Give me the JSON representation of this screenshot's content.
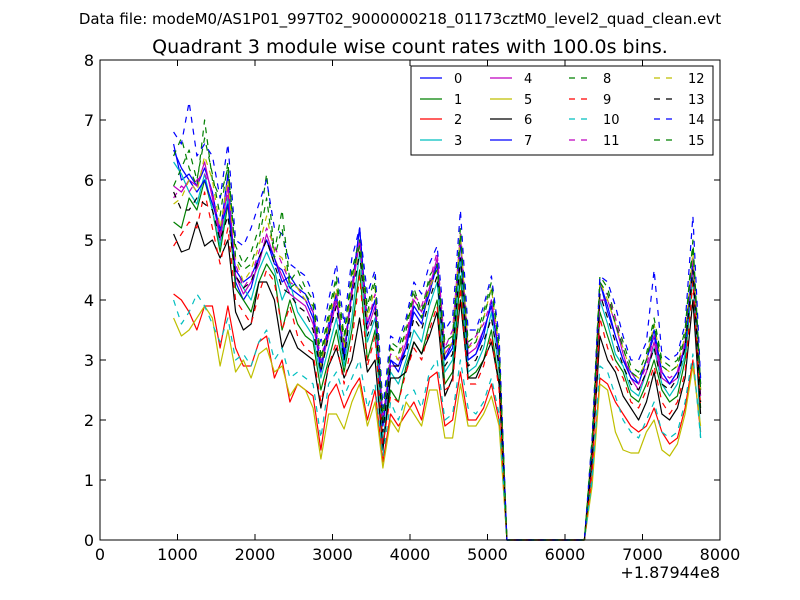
{
  "suptitle": "Data file: modeM0/AS1P01_997T02_9000000218_01173cztM0_level2_quad_clean.evt",
  "chart_data": {
    "type": "line",
    "title": "Quadrant 3 module wise count rates with 100.0s bins.",
    "xlabel": "",
    "ylabel": "",
    "xlim": [
      0,
      8000
    ],
    "ylim": [
      0,
      8
    ],
    "x_offset_label": "+1.87944e8",
    "x_ticks": [
      0,
      1000,
      2000,
      3000,
      4000,
      5000,
      6000,
      7000,
      8000
    ],
    "y_ticks": [
      0,
      1,
      2,
      3,
      4,
      5,
      6,
      7,
      8
    ],
    "grid": false,
    "legend_position": "top-right",
    "x": [
      950,
      1050,
      1150,
      1250,
      1350,
      1450,
      1550,
      1650,
      1750,
      1850,
      1950,
      2050,
      2150,
      2250,
      2350,
      2450,
      2550,
      2650,
      2750,
      2850,
      2950,
      3050,
      3150,
      3250,
      3350,
      3450,
      3550,
      3650,
      3750,
      3850,
      3950,
      4050,
      4150,
      4250,
      4350,
      4450,
      4550,
      4650,
      4750,
      4850,
      4950,
      5050,
      5150,
      5250,
      6250,
      6350,
      6450,
      6550,
      6650,
      6750,
      6850,
      6950,
      7050,
      7150,
      7250,
      7350,
      7450,
      7550,
      7650,
      7750
    ],
    "series": [
      {
        "name": "0",
        "color": "#0000ff",
        "dash": "solid",
        "values": [
          6.6,
          6.0,
          6.1,
          5.9,
          6.2,
          5.8,
          5.1,
          6.1,
          4.3,
          4.0,
          4.2,
          4.7,
          5.0,
          4.6,
          4.5,
          4.2,
          4.1,
          4.0,
          3.7,
          2.8,
          3.5,
          4.1,
          3.0,
          4.2,
          5.2,
          3.6,
          4.0,
          2.0,
          3.0,
          2.8,
          3.2,
          3.8,
          3.6,
          4.2,
          4.6,
          3.0,
          3.2,
          5.0,
          3.0,
          3.1,
          3.4,
          4.0,
          3.0,
          0.0,
          0.0,
          1.5,
          4.3,
          3.8,
          3.4,
          3.0,
          2.8,
          2.6,
          3.0,
          3.5,
          2.8,
          2.6,
          2.8,
          3.2,
          4.7,
          2.5
        ]
      },
      {
        "name": "1",
        "color": "#008000",
        "dash": "solid",
        "values": [
          5.3,
          5.2,
          5.7,
          5.5,
          6.0,
          5.5,
          4.8,
          5.6,
          4.2,
          4.0,
          3.8,
          4.3,
          4.6,
          4.4,
          3.5,
          4.0,
          3.6,
          3.4,
          3.3,
          2.5,
          3.0,
          3.5,
          2.8,
          3.5,
          4.5,
          3.0,
          3.5,
          1.6,
          2.5,
          2.3,
          2.9,
          3.3,
          3.1,
          3.6,
          4.0,
          2.6,
          2.8,
          4.4,
          2.7,
          2.8,
          3.0,
          3.5,
          2.6,
          0.0,
          0.0,
          1.3,
          3.8,
          3.4,
          3.0,
          2.8,
          2.4,
          2.3,
          2.6,
          3.0,
          2.5,
          2.3,
          2.4,
          3.0,
          4.4,
          2.2
        ]
      },
      {
        "name": "2",
        "color": "#ff0000",
        "dash": "solid",
        "values": [
          4.1,
          4.0,
          3.8,
          3.5,
          3.9,
          3.9,
          3.2,
          3.9,
          3.2,
          2.9,
          2.9,
          3.3,
          3.4,
          2.7,
          3.0,
          2.3,
          2.6,
          2.5,
          2.4,
          1.5,
          2.4,
          2.6,
          2.2,
          2.5,
          2.7,
          2.0,
          2.5,
          1.3,
          2.1,
          1.9,
          2.1,
          2.3,
          2.0,
          2.7,
          2.8,
          1.9,
          2.0,
          2.8,
          2.0,
          2.0,
          2.2,
          2.6,
          2.0,
          0.0,
          0.0,
          1.0,
          2.7,
          2.6,
          2.3,
          2.1,
          1.9,
          1.8,
          1.9,
          2.2,
          1.8,
          1.6,
          1.7,
          2.2,
          3.0,
          1.8
        ]
      },
      {
        "name": "3",
        "color": "#00bfbf",
        "dash": "solid",
        "values": [
          6.3,
          6.1,
          5.8,
          5.6,
          6.1,
          5.5,
          4.9,
          5.7,
          4.4,
          4.2,
          4.0,
          4.5,
          4.8,
          4.5,
          4.0,
          4.3,
          3.8,
          3.6,
          3.4,
          2.7,
          3.2,
          3.7,
          2.9,
          3.7,
          4.8,
          3.3,
          3.7,
          1.6,
          2.8,
          2.6,
          3.0,
          3.5,
          3.3,
          3.9,
          4.3,
          2.8,
          3.0,
          4.7,
          2.8,
          2.9,
          3.2,
          3.8,
          2.8,
          0.0,
          0.0,
          1.4,
          4.0,
          3.6,
          3.1,
          2.9,
          2.5,
          2.4,
          2.8,
          3.2,
          2.6,
          2.4,
          2.6,
          3.1,
          4.5,
          1.7
        ]
      },
      {
        "name": "4",
        "color": "#bf00bf",
        "dash": "solid",
        "values": [
          5.9,
          5.8,
          6.0,
          5.9,
          6.3,
          5.7,
          5.0,
          5.9,
          4.4,
          4.1,
          4.3,
          4.6,
          5.1,
          4.7,
          4.4,
          4.1,
          4.0,
          3.9,
          3.6,
          2.9,
          3.4,
          4.0,
          3.1,
          4.1,
          5.0,
          3.5,
          3.9,
          1.9,
          2.9,
          2.9,
          3.3,
          4.0,
          3.8,
          4.2,
          4.7,
          3.1,
          3.3,
          5.0,
          3.1,
          3.2,
          3.5,
          3.9,
          3.1,
          0.0,
          0.0,
          1.5,
          4.0,
          4.0,
          3.6,
          3.1,
          2.7,
          2.5,
          2.8,
          3.3,
          2.7,
          2.6,
          2.7,
          3.3,
          4.6,
          2.4
        ]
      },
      {
        "name": "5",
        "color": "#bfbf00",
        "dash": "solid",
        "values": [
          3.7,
          3.4,
          3.5,
          3.7,
          3.9,
          3.7,
          2.9,
          3.5,
          2.8,
          3.0,
          2.7,
          3.1,
          3.2,
          2.8,
          2.9,
          2.4,
          2.6,
          2.5,
          2.2,
          1.35,
          2.1,
          2.1,
          1.85,
          2.3,
          2.6,
          1.9,
          2.3,
          1.2,
          2.0,
          1.8,
          2.3,
          2.1,
          1.9,
          2.5,
          2.5,
          1.7,
          1.7,
          2.6,
          1.9,
          1.9,
          2.1,
          2.4,
          1.9,
          0.0,
          0.0,
          0.9,
          2.6,
          2.5,
          1.8,
          1.5,
          1.45,
          1.45,
          1.8,
          2.0,
          1.5,
          1.4,
          1.6,
          2.1,
          2.9,
          1.9
        ]
      },
      {
        "name": "6",
        "color": "#000000",
        "dash": "solid",
        "values": [
          5.1,
          4.8,
          4.85,
          5.3,
          4.9,
          5.0,
          4.7,
          5.0,
          3.8,
          3.5,
          3.6,
          4.3,
          4.3,
          4.0,
          3.2,
          3.5,
          3.2,
          3.1,
          3.0,
          2.2,
          2.9,
          3.2,
          2.7,
          3.0,
          3.7,
          2.8,
          3.0,
          1.5,
          2.7,
          2.7,
          2.8,
          3.3,
          3.1,
          3.4,
          3.8,
          2.4,
          2.7,
          4.0,
          2.7,
          2.7,
          3.0,
          3.3,
          2.6,
          0.0,
          0.0,
          1.3,
          3.4,
          3.0,
          2.8,
          2.4,
          2.2,
          2.0,
          2.3,
          2.8,
          2.1,
          2.0,
          2.2,
          2.7,
          4.0,
          2.1
        ]
      },
      {
        "name": "7",
        "color": "#0000ff",
        "dash": "solid",
        "values": [
          6.5,
          6.2,
          6.0,
          5.8,
          6.0,
          5.6,
          5.2,
          5.6,
          4.5,
          4.3,
          4.4,
          4.7,
          5.0,
          4.7,
          4.3,
          4.4,
          4.2,
          4.1,
          3.8,
          2.9,
          3.6,
          4.1,
          3.1,
          4.2,
          5.2,
          3.6,
          4.0,
          1.9,
          3.0,
          2.9,
          3.2,
          3.9,
          3.7,
          4.1,
          4.6,
          3.0,
          3.3,
          5.0,
          3.0,
          3.1,
          3.5,
          3.9,
          3.1,
          0.0,
          0.0,
          1.5,
          4.3,
          3.9,
          3.4,
          3.0,
          2.7,
          2.6,
          3.0,
          3.4,
          2.8,
          2.6,
          2.8,
          3.2,
          4.7,
          2.6
        ]
      },
      {
        "name": "8",
        "color": "#008000",
        "dash": "dashed",
        "values": [
          6.4,
          6.7,
          6.2,
          5.9,
          7.0,
          6.0,
          5.7,
          6.2,
          4.9,
          4.6,
          4.8,
          5.2,
          6.1,
          4.8,
          5.5,
          4.3,
          4.5,
          4.2,
          4.0,
          3.1,
          3.8,
          4.4,
          3.4,
          4.5,
          5.0,
          3.9,
          4.4,
          2.1,
          3.3,
          3.2,
          3.6,
          4.2,
          3.8,
          4.4,
          4.6,
          3.3,
          3.4,
          5.2,
          3.3,
          3.4,
          3.8,
          4.3,
          3.3,
          0.0,
          0.0,
          1.7,
          4.4,
          4.2,
          3.7,
          3.3,
          2.9,
          2.8,
          3.1,
          3.7,
          3.0,
          2.9,
          3.0,
          3.5,
          5.0,
          2.6
        ]
      },
      {
        "name": "9",
        "color": "#ff0000",
        "dash": "dashed",
        "values": [
          4.9,
          5.1,
          5.3,
          5.2,
          5.8,
          5.2,
          4.6,
          5.2,
          4.0,
          3.8,
          3.6,
          4.1,
          4.5,
          4.3,
          3.5,
          3.9,
          3.4,
          3.2,
          3.1,
          2.3,
          2.9,
          3.3,
          2.6,
          3.3,
          4.4,
          2.9,
          3.4,
          1.6,
          2.4,
          2.3,
          2.8,
          3.2,
          3.0,
          3.5,
          3.9,
          2.5,
          2.6,
          4.2,
          2.6,
          2.6,
          2.9,
          3.4,
          2.5,
          0.0,
          0.0,
          1.2,
          3.7,
          3.2,
          2.9,
          2.7,
          2.3,
          2.2,
          2.5,
          2.9,
          2.3,
          2.1,
          2.3,
          2.8,
          4.3,
          2.2
        ]
      },
      {
        "name": "10",
        "color": "#00bfbf",
        "dash": "dashed",
        "values": [
          4.0,
          3.6,
          3.8,
          4.1,
          3.9,
          3.6,
          3.3,
          3.7,
          3.0,
          3.1,
          2.9,
          3.3,
          3.5,
          3.0,
          3.2,
          2.7,
          2.8,
          2.7,
          2.6,
          1.7,
          2.6,
          2.8,
          2.4,
          2.7,
          3.0,
          2.2,
          2.6,
          1.4,
          2.3,
          2.0,
          2.4,
          2.5,
          2.2,
          2.8,
          3.0,
          2.0,
          2.1,
          3.0,
          2.2,
          2.1,
          2.3,
          2.7,
          2.1,
          0.0,
          0.0,
          1.0,
          2.9,
          2.8,
          2.4,
          2.0,
          1.8,
          1.7,
          2.0,
          2.3,
          1.8,
          1.7,
          1.8,
          2.3,
          3.1,
          1.7
        ]
      },
      {
        "name": "11",
        "color": "#bf00bf",
        "dash": "dashed",
        "values": [
          5.7,
          5.9,
          5.8,
          6.0,
          6.1,
          5.8,
          5.1,
          5.8,
          4.6,
          4.2,
          4.4,
          4.8,
          5.2,
          4.9,
          4.6,
          4.3,
          4.2,
          4.0,
          3.8,
          3.0,
          3.6,
          4.1,
          3.2,
          4.2,
          5.0,
          3.6,
          4.1,
          2.0,
          3.1,
          3.0,
          3.4,
          4.1,
          3.9,
          4.3,
          4.8,
          3.2,
          3.5,
          5.1,
          3.2,
          3.4,
          3.6,
          4.0,
          3.2,
          0.0,
          0.0,
          1.6,
          4.1,
          4.1,
          3.7,
          3.2,
          2.8,
          2.6,
          2.9,
          3.4,
          2.8,
          2.7,
          2.8,
          3.4,
          4.7,
          2.5
        ]
      },
      {
        "name": "12",
        "color": "#bfbf00",
        "dash": "dashed",
        "values": [
          5.6,
          5.7,
          6.0,
          5.8,
          6.4,
          6.0,
          5.2,
          6.0,
          4.7,
          4.3,
          4.5,
          4.9,
          5.4,
          4.8,
          4.7,
          4.3,
          4.2,
          4.0,
          3.9,
          2.9,
          3.6,
          4.2,
          3.2,
          4.3,
          4.9,
          3.7,
          4.2,
          2.0,
          3.2,
          3.0,
          3.5,
          4.1,
          3.7,
          4.2,
          4.5,
          3.1,
          3.3,
          5.1,
          3.2,
          3.3,
          3.7,
          4.2,
          3.2,
          0.0,
          0.0,
          1.6,
          4.3,
          4.0,
          3.6,
          3.2,
          2.8,
          2.7,
          3.0,
          3.6,
          2.9,
          2.8,
          2.9,
          3.4,
          4.8,
          2.5
        ]
      },
      {
        "name": "13",
        "color": "#000000",
        "dash": "dashed",
        "values": [
          5.8,
          5.5,
          5.5,
          5.7,
          5.6,
          5.5,
          5.0,
          5.4,
          4.4,
          4.2,
          4.3,
          4.7,
          5.0,
          4.6,
          4.2,
          4.1,
          3.9,
          3.8,
          3.5,
          2.8,
          3.4,
          3.9,
          3.0,
          4.0,
          4.8,
          3.4,
          3.8,
          1.8,
          2.9,
          2.9,
          3.1,
          3.7,
          3.5,
          4.0,
          4.4,
          2.9,
          3.1,
          4.7,
          2.9,
          3.0,
          3.3,
          3.7,
          2.9,
          0.0,
          0.0,
          1.5,
          4.1,
          3.7,
          3.3,
          2.9,
          2.6,
          2.5,
          2.8,
          3.2,
          2.6,
          2.5,
          2.7,
          3.2,
          4.5,
          2.3
        ]
      },
      {
        "name": "14",
        "color": "#0000ff",
        "dash": "dashed",
        "values": [
          6.8,
          6.6,
          7.3,
          6.4,
          6.6,
          6.4,
          5.7,
          6.6,
          5.0,
          4.9,
          5.2,
          5.6,
          6.0,
          5.2,
          5.1,
          4.6,
          4.5,
          4.4,
          4.1,
          3.3,
          4.0,
          4.6,
          3.6,
          4.7,
          5.2,
          4.1,
          4.5,
          2.2,
          3.4,
          3.3,
          3.7,
          4.3,
          4.1,
          4.6,
          4.9,
          3.5,
          3.7,
          5.5,
          3.5,
          3.5,
          3.9,
          4.4,
          3.4,
          0.0,
          0.0,
          1.7,
          4.4,
          4.3,
          3.9,
          3.4,
          3.0,
          3.0,
          3.3,
          4.5,
          3.1,
          3.0,
          3.1,
          3.6,
          5.4,
          2.7
        ]
      },
      {
        "name": "15",
        "color": "#008000",
        "dash": "dashed",
        "values": [
          5.9,
          6.2,
          6.5,
          6.0,
          6.7,
          6.1,
          5.4,
          6.3,
          4.7,
          4.5,
          4.6,
          5.0,
          5.7,
          4.7,
          5.2,
          4.2,
          4.3,
          4.1,
          3.9,
          3.0,
          3.7,
          4.3,
          3.3,
          4.4,
          4.9,
          3.8,
          4.3,
          2.0,
          3.2,
          3.1,
          3.5,
          4.1,
          3.7,
          4.3,
          4.5,
          3.2,
          3.3,
          5.1,
          3.2,
          3.3,
          3.7,
          4.2,
          3.2,
          0.0,
          0.0,
          1.6,
          4.3,
          4.1,
          3.6,
          3.2,
          2.8,
          2.7,
          3.0,
          3.6,
          2.9,
          2.8,
          2.9,
          3.4,
          4.9,
          2.5
        ]
      }
    ]
  }
}
